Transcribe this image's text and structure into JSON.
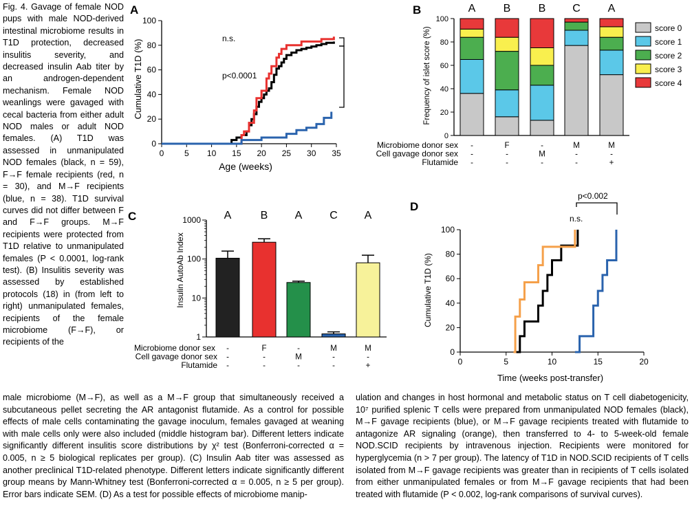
{
  "caption": {
    "left": "Fig. 4. Gavage of female NOD pups with male NOD-derived intestinal microbiome results in T1D protection, decreased insulitis severity, and decreased insulin Aab titer by an androgen-dependent mechanism. Female NOD weanlings were gavaged with cecal bacteria from either adult NOD males or adult NOD females. (A) T1D was assessed in unmanipulated NOD females (black, n = 59), F→F female recipients (red, n = 30), and M→F recipients (blue, n = 38). T1D survival curves did not differ between F and F→F groups. M→F recipients were protected from T1D relative to unmanipulated females (P < 0.0001, log-rank test). (B) Insulitis severity was assessed by established protocols (18) in (from left to right) unmanipulated females, recipients of the female microbiome (F→F), or recipients of the",
    "bottom_left": "male microbiome (M→F), as well as a M→F group that simultaneously received a subcutaneous pellet secreting the AR antagonist flutamide. As a control for possible effects of male cells contaminating the gavage inoculum, females gavaged at weaning with male cells only were also included (middle histogram bar). Different letters indicate significantly different insulitis score distributions by χ² test (Bonferroni-corrected α = 0.005, n ≥ 5 biological replicates per group). (C) Insulin Aab titer was assessed as another preclinical T1D-related phenotype. Different letters indicate significantly different group means by Mann-Whitney test (Bonferroni-corrected α = 0.005, n ≥ 5 per group). Error bars indicate SEM. (D) As a test for possible effects of microbiome manip-",
    "bottom_right": "ulation and changes in host hormonal and metabolic status on T cell diabetogenicity, 10⁷ purified splenic T cells were prepared from unmanipulated NOD females (black), M→F gavage recipients (blue), or M→F gavage recipients treated with flutamide to antagonize AR signaling (orange), then transferred to 4- to 5-week-old female NOD.SCID recipients by intravenous injection. Recipients were monitored for hyperglycemia (n > 7 per group). The latency of T1D in NOD.SCID recipients of T cells isolated from M→F gavage recipients was greater than in recipients of T cells isolated from either unmanipulated females or from M→F gavage recipients that had been treated with flutamide (P < 0.002, log-rank comparisons of survival curves)."
  },
  "panels": {
    "A": {
      "label": "A",
      "ylabel": "Cumulative T1D (%)",
      "xlabel": "Age (weeks)",
      "annotations": [
        "n.s.",
        "p<0.0001"
      ]
    },
    "B": {
      "label": "B",
      "ylabel": "Frequency of islet score (%)",
      "legend": [
        "score 0",
        "score 1",
        "score 2",
        "score 3",
        "score 4"
      ],
      "letters": [
        "A",
        "B",
        "B",
        "C",
        "A"
      ],
      "row_labels": [
        "Microbiome donor sex",
        "Cell gavage donor sex",
        "Flutamide"
      ]
    },
    "C": {
      "label": "C",
      "ylabel": "Insulin AutoAb Index",
      "letters": [
        "A",
        "B",
        "A",
        "C",
        "A"
      ],
      "row_labels": [
        "Microbiome donor sex",
        "Cell gavage donor sex",
        "Flutamide"
      ]
    },
    "D": {
      "label": "D",
      "ylabel": "Cumulative T1D (%)",
      "xlabel": "Time (weeks post-transfer)",
      "annotations": [
        "n.s.",
        "p<0.002"
      ]
    }
  },
  "colors": {
    "black": "#000000",
    "red": "#e8312f",
    "blue": "#2a63ad",
    "orange": "#f5a04a",
    "score0": "#c8c8c8",
    "score1": "#5bc8e8",
    "score2": "#4cae4f",
    "score3": "#f9ef4e",
    "score4": "#e8393a",
    "bar_green": "#24904a",
    "bar_yellow": "#f7f29a"
  },
  "chart_data": [
    {
      "panel": "A",
      "type": "line",
      "xlabel": "Age (weeks)",
      "ylabel": "Cumulative T1D (%)",
      "xlim": [
        0,
        35
      ],
      "ylim": [
        0,
        100
      ],
      "xticks": [
        0,
        5,
        10,
        15,
        20,
        25,
        30,
        35
      ],
      "yticks": [
        0,
        20,
        40,
        60,
        80,
        100
      ],
      "series": [
        {
          "color": "#000000",
          "x": [
            0,
            13,
            14,
            15,
            16,
            17,
            17.5,
            18,
            18.5,
            19,
            19.5,
            20,
            20.5,
            21,
            21.5,
            22,
            22.5,
            23,
            23.5,
            24,
            24.5,
            25,
            26,
            27,
            28,
            29,
            30,
            31,
            32,
            33,
            34.5
          ],
          "y": [
            0,
            0,
            3,
            5,
            7,
            10,
            15,
            20,
            24,
            30,
            34,
            37,
            40,
            43,
            45,
            50,
            56,
            61,
            63,
            66,
            69,
            72,
            74,
            76,
            77,
            78,
            79,
            80,
            81,
            82,
            83
          ]
        },
        {
          "color": "#e8312f",
          "x": [
            0,
            14,
            16,
            16.5,
            17.5,
            18.5,
            19,
            20,
            21,
            21.5,
            22,
            23,
            23.5,
            24,
            25,
            26,
            28,
            30,
            32,
            34.5
          ],
          "y": [
            0,
            0,
            7,
            10,
            17,
            27,
            37,
            43,
            53,
            57,
            63,
            70,
            73,
            77,
            80,
            80,
            83,
            83,
            85,
            87
          ]
        },
        {
          "color": "#2a63ad",
          "x": [
            0,
            15.5,
            16,
            20,
            25,
            27,
            29,
            31,
            32.5,
            34
          ],
          "y": [
            0,
            0,
            3,
            5,
            8,
            11,
            13,
            16,
            21,
            26
          ]
        }
      ],
      "annotations": [
        "n.s.",
        "p<0.0001"
      ]
    },
    {
      "panel": "B",
      "type": "bar",
      "stacked": true,
      "ylabel": "Frequency of islet score (%)",
      "ylim": [
        0,
        100
      ],
      "yticks": [
        0,
        20,
        40,
        60,
        80,
        100
      ],
      "letters": [
        "A",
        "B",
        "B",
        "C",
        "A"
      ],
      "conditions": {
        "Microbiome donor sex": [
          "-",
          "F",
          "-",
          "M",
          "M"
        ],
        "Cell gavage donor sex": [
          "-",
          "-",
          "M",
          "-",
          "-"
        ],
        "Flutamide": [
          "-",
          "-",
          "-",
          "-",
          "+"
        ]
      },
      "series": [
        {
          "name": "score 0",
          "color": "#c8c8c8",
          "values": [
            36,
            16,
            13,
            77,
            52
          ]
        },
        {
          "name": "score 1",
          "color": "#5bc8e8",
          "values": [
            29,
            23,
            30,
            13,
            21
          ]
        },
        {
          "name": "score 2",
          "color": "#4cae4f",
          "values": [
            19,
            33,
            17,
            7,
            11
          ]
        },
        {
          "name": "score 3",
          "color": "#f9ef4e",
          "values": [
            7,
            12,
            15,
            0,
            9
          ]
        },
        {
          "name": "score 4",
          "color": "#e8393a",
          "values": [
            9,
            16,
            25,
            3,
            7
          ]
        }
      ],
      "legend_position": "right"
    },
    {
      "panel": "C",
      "type": "bar",
      "ylabel": "Insulin AutoAb Index",
      "yscale": "log",
      "ylim": [
        1,
        1000
      ],
      "yticks": [
        1,
        10,
        100,
        1000
      ],
      "letters": [
        "A",
        "B",
        "A",
        "C",
        "A"
      ],
      "conditions": {
        "Microbiome donor sex": [
          "-",
          "F",
          "-",
          "M",
          "M"
        ],
        "Cell gavage donor sex": [
          "-",
          "-",
          "M",
          "-",
          "-"
        ],
        "Flutamide": [
          "-",
          "-",
          "-",
          "-",
          "+"
        ]
      },
      "values": [
        105,
        270,
        25,
        1.2,
        80
      ],
      "error_upper": [
        160,
        330,
        27,
        1.35,
        125
      ],
      "colors": [
        "#222222",
        "#e8312f",
        "#24904a",
        "#2a63ad",
        "#f7f29a"
      ]
    },
    {
      "panel": "D",
      "type": "line",
      "xlabel": "Time (weeks post-transfer)",
      "ylabel": "Cumulative T1D (%)",
      "xlim": [
        0,
        20
      ],
      "ylim": [
        0,
        100
      ],
      "xticks": [
        0,
        5,
        10,
        15,
        20
      ],
      "yticks": [
        0,
        20,
        40,
        60,
        80,
        100
      ],
      "series": [
        {
          "color": "#000000",
          "x": [
            6,
            6.5,
            7,
            8,
            8.5,
            9,
            9.5,
            10,
            11,
            12,
            12.8
          ],
          "y": [
            0,
            13,
            25,
            25,
            38,
            50,
            63,
            75,
            87,
            87,
            100
          ]
        },
        {
          "color": "#f5a04a",
          "x": [
            5.8,
            6,
            6.5,
            7,
            8,
            8.5,
            9,
            10,
            11,
            12.5
          ],
          "y": [
            0,
            29,
            43,
            57,
            57,
            71,
            86,
            86,
            86,
            100
          ]
        },
        {
          "color": "#2a63ad",
          "x": [
            12.5,
            13,
            14,
            14.5,
            15,
            15.5,
            16,
            16.5,
            17
          ],
          "y": [
            0,
            13,
            13,
            38,
            50,
            63,
            75,
            75,
            100
          ]
        }
      ],
      "annotations": [
        "n.s.",
        "p<0.002"
      ]
    }
  ]
}
